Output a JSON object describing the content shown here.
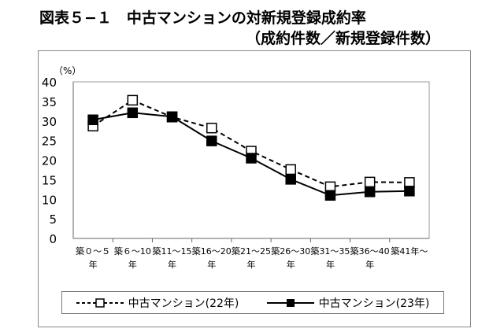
{
  "chart_data": {
    "type": "line",
    "title": "図表５−１　中古マンションの対新規登録成約率",
    "subtitle": "（成約件数／新規登録件数）",
    "ylabel": "（%）",
    "xlabel": "",
    "ylim": [
      0,
      40
    ],
    "yticks": [
      "0",
      "5",
      "10",
      "15",
      "20",
      "25",
      "30",
      "35",
      "40"
    ],
    "categories": [
      [
        "築０～５",
        "年"
      ],
      [
        "築６～10",
        "年"
      ],
      [
        "築11～15",
        "年"
      ],
      [
        "築16～20",
        "年"
      ],
      [
        "築21～25",
        "年"
      ],
      [
        "築26～30",
        "年"
      ],
      [
        "築31～35",
        "年"
      ],
      [
        "築36～40",
        "年"
      ],
      [
        "築41年～",
        ""
      ]
    ],
    "series": [
      {
        "name": "中古マンション(22年)",
        "style": "dashed",
        "marker": "open-square",
        "values": [
          28.7,
          35.3,
          31.0,
          28.2,
          22.3,
          17.6,
          13.2,
          14.4,
          14.3
        ]
      },
      {
        "name": "中古マンション(23年)",
        "style": "solid",
        "marker": "filled-square",
        "values": [
          30.3,
          32.1,
          31.1,
          24.9,
          20.5,
          15.1,
          11.0,
          11.9,
          12.1
        ]
      }
    ],
    "legend": "bottom",
    "grid": false
  }
}
